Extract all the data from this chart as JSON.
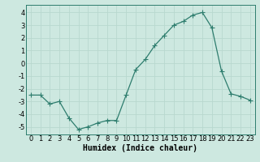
{
  "x": [
    0,
    1,
    2,
    3,
    4,
    5,
    6,
    7,
    8,
    9,
    10,
    11,
    12,
    13,
    14,
    15,
    16,
    17,
    18,
    19,
    20,
    21,
    22,
    23
  ],
  "y": [
    -2.5,
    -2.5,
    -3.2,
    -3.0,
    -4.3,
    -5.2,
    -5.0,
    -4.7,
    -4.5,
    -4.5,
    -2.5,
    -0.5,
    0.3,
    1.4,
    2.2,
    3.0,
    3.3,
    3.8,
    4.0,
    2.8,
    -0.6,
    -2.4,
    -2.6,
    -2.9
  ],
  "xlabel": "Humidex (Indice chaleur)",
  "xlim": [
    -0.5,
    23.5
  ],
  "ylim": [
    -5.6,
    4.6
  ],
  "yticks": [
    -5,
    -4,
    -3,
    -2,
    -1,
    0,
    1,
    2,
    3,
    4
  ],
  "xticks": [
    0,
    1,
    2,
    3,
    4,
    5,
    6,
    7,
    8,
    9,
    10,
    11,
    12,
    13,
    14,
    15,
    16,
    17,
    18,
    19,
    20,
    21,
    22,
    23
  ],
  "line_color": "#2e7d6e",
  "marker_size": 2.5,
  "bg_color": "#cde8e0",
  "grid_color": "#b8d8cf",
  "tick_fontsize": 6,
  "label_fontsize": 7,
  "linewidth": 0.9
}
